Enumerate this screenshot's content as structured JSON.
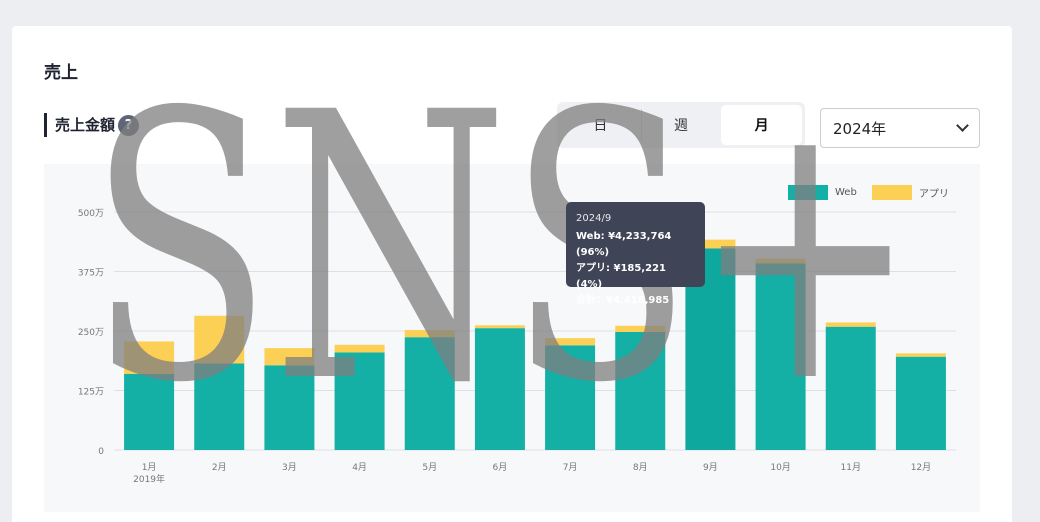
{
  "section": {
    "title": "売上"
  },
  "subsection": {
    "title": "売上金額",
    "help_icon": "?"
  },
  "period_tabs": [
    {
      "label": "日",
      "active": false
    },
    {
      "label": "週",
      "active": false
    },
    {
      "label": "月",
      "active": true
    }
  ],
  "year_select": {
    "value": "2024年"
  },
  "colors": {
    "web": "#14b0a6",
    "app": "#fccf55",
    "tooltip_bg": "#3f4557"
  },
  "watermark": {
    "text": "SNS+"
  },
  "tooltip": {
    "title": "2024/9",
    "web": "Web: ¥4,233,764 (96%)",
    "app": "アプリ: ¥185,221 (4%)",
    "total": "合計：¥4,418,985"
  },
  "chart_data": {
    "type": "bar",
    "stacked": true,
    "categories": [
      "1月",
      "2月",
      "3月",
      "4月",
      "5月",
      "6月",
      "7月",
      "8月",
      "9月",
      "10月",
      "11月",
      "12月"
    ],
    "first_category_sublabel": "2019年",
    "series": [
      {
        "name": "Web",
        "values": [
          1600000,
          1820000,
          1780000,
          2050000,
          2370000,
          2560000,
          2200000,
          2480000,
          4233764,
          3920000,
          2590000,
          1960000
        ]
      },
      {
        "name": "アプリ",
        "values": [
          680000,
          1000000,
          360000,
          160000,
          150000,
          60000,
          150000,
          130000,
          185221,
          100000,
          90000,
          70000
        ]
      }
    ],
    "y_ticks": [
      "0",
      "125万",
      "250万",
      "375万",
      "500万"
    ],
    "y_tick_values": [
      0,
      1250000,
      2500000,
      3750000,
      5000000
    ],
    "ylim": [
      0,
      5000000
    ],
    "highlight_index": 8,
    "legend_position": "top-right",
    "grid": true
  }
}
